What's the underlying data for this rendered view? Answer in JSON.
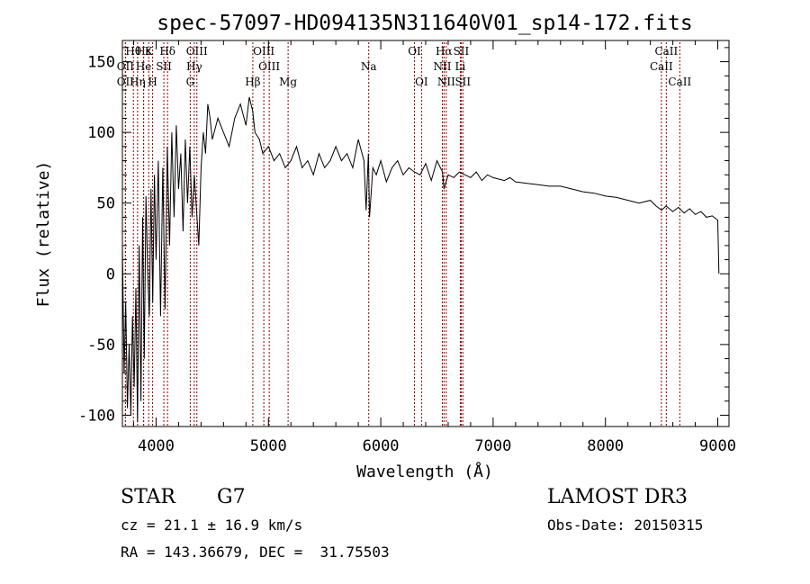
{
  "chart_data": {
    "type": "line",
    "title": "spec-57097-HD094135N311640V01_sp14-172.fits",
    "xlabel": "Wavelength (Å)",
    "ylabel": "Flux (relative)",
    "xlim": [
      3700,
      9100
    ],
    "ylim": [
      -108,
      165
    ],
    "xticks": [
      4000,
      5000,
      6000,
      7000,
      8000,
      9000
    ],
    "yticks": [
      -100,
      -50,
      0,
      50,
      100,
      150
    ],
    "grid": false,
    "line_color": "#000000",
    "marker_color": "#8b0000",
    "spectrum": {
      "x": [
        3700,
        3715,
        3730,
        3745,
        3760,
        3775,
        3790,
        3805,
        3820,
        3835,
        3850,
        3865,
        3880,
        3895,
        3910,
        3925,
        3940,
        3955,
        3970,
        3985,
        4000,
        4020,
        4040,
        4060,
        4080,
        4100,
        4120,
        4140,
        4160,
        4180,
        4200,
        4220,
        4240,
        4260,
        4280,
        4300,
        4320,
        4340,
        4360,
        4380,
        4400,
        4420,
        4440,
        4460,
        4480,
        4500,
        4550,
        4600,
        4650,
        4700,
        4750,
        4800,
        4830,
        4860,
        4880,
        4920,
        4950,
        5000,
        5050,
        5100,
        5150,
        5200,
        5250,
        5300,
        5350,
        5400,
        5450,
        5500,
        5550,
        5600,
        5650,
        5700,
        5750,
        5800,
        5850,
        5870,
        5890,
        5900,
        5930,
        5960,
        6000,
        6050,
        6100,
        6150,
        6200,
        6250,
        6300,
        6350,
        6400,
        6450,
        6500,
        6550,
        6563,
        6600,
        6650,
        6700,
        6750,
        6800,
        6850,
        6900,
        6950,
        7000,
        7050,
        7100,
        7150,
        7200,
        7300,
        7400,
        7500,
        7600,
        7700,
        7800,
        7900,
        8000,
        8100,
        8200,
        8300,
        8400,
        8450,
        8500,
        8540,
        8600,
        8650,
        8700,
        8750,
        8800,
        8850,
        8900,
        8950,
        9000,
        9010
      ],
      "y": [
        20,
        -70,
        -20,
        -95,
        -50,
        -100,
        -30,
        -80,
        -10,
        -105,
        20,
        -90,
        40,
        -60,
        55,
        0,
        -30,
        60,
        -20,
        70,
        10,
        80,
        -30,
        75,
        -25,
        90,
        20,
        100,
        40,
        105,
        60,
        85,
        30,
        95,
        50,
        90,
        40,
        70,
        45,
        20,
        75,
        100,
        85,
        120,
        110,
        95,
        110,
        100,
        90,
        110,
        120,
        105,
        125,
        115,
        100,
        95,
        85,
        90,
        80,
        85,
        75,
        80,
        90,
        75,
        80,
        70,
        85,
        75,
        80,
        90,
        80,
        85,
        75,
        95,
        80,
        45,
        85,
        40,
        75,
        70,
        80,
        65,
        75,
        80,
        70,
        75,
        72,
        70,
        78,
        66,
        80,
        72,
        60,
        70,
        68,
        72,
        70,
        68,
        72,
        66,
        70,
        68,
        67,
        66,
        68,
        65,
        64,
        63,
        62,
        62,
        60,
        58,
        57,
        55,
        54,
        52,
        50,
        52,
        48,
        45,
        48,
        44,
        47,
        43,
        46,
        42,
        44,
        40,
        41,
        38,
        0
      ]
    },
    "line_markers": [
      {
        "name": "Hθ",
        "x": 3798,
        "row": 1
      },
      {
        "name": "OII",
        "x": 3727,
        "row": 2
      },
      {
        "name": "OII",
        "x": 3727,
        "row": 3
      },
      {
        "name": "Hε",
        "x": 3889,
        "row": 1
      },
      {
        "name": "K",
        "x": 3934,
        "row": 1
      },
      {
        "name": "Hη",
        "x": 3835,
        "row": 3
      },
      {
        "name": "H",
        "x": 3969,
        "row": 3
      },
      {
        "name": "He",
        "x": 3889,
        "row": 2
      },
      {
        "name": "SII",
        "x": 4069,
        "row": 2
      },
      {
        "name": "Hδ",
        "x": 4102,
        "row": 1
      },
      {
        "name": "OIII",
        "x": 4363,
        "row": 1
      },
      {
        "name": "Hγ",
        "x": 4340,
        "row": 2
      },
      {
        "name": "G",
        "x": 4304,
        "row": 3
      },
      {
        "name": "Hβ",
        "x": 4861,
        "row": 3
      },
      {
        "name": "OIII",
        "x": 4959,
        "row": 1
      },
      {
        "name": "OIII",
        "x": 5007,
        "row": 2
      },
      {
        "name": "Mg",
        "x": 5175,
        "row": 3
      },
      {
        "name": "Na",
        "x": 5893,
        "row": 2
      },
      {
        "name": "OI",
        "x": 6300,
        "row": 1
      },
      {
        "name": "OI",
        "x": 6363,
        "row": 3
      },
      {
        "name": "Hα",
        "x": 6563,
        "row": 1
      },
      {
        "name": "SII",
        "x": 6716,
        "row": 1
      },
      {
        "name": "NII",
        "x": 6548,
        "row": 2
      },
      {
        "name": "Li",
        "x": 6708,
        "row": 2
      },
      {
        "name": "NII",
        "x": 6583,
        "row": 3
      },
      {
        "name": "SII",
        "x": 6731,
        "row": 3
      },
      {
        "name": "CaII",
        "x": 8542,
        "row": 1
      },
      {
        "name": "CaII",
        "x": 8498,
        "row": 2
      },
      {
        "name": "CaII",
        "x": 8662,
        "row": 3
      }
    ]
  },
  "info": {
    "object_class": "STAR",
    "subclass": "G7",
    "survey": "LAMOST DR3",
    "redshift_line": "cz = 21.1 ± 16.9 km/s",
    "obs_date": "Obs-Date: 20150315",
    "coords": "RA = 143.36679, DEC =  31.75503"
  }
}
